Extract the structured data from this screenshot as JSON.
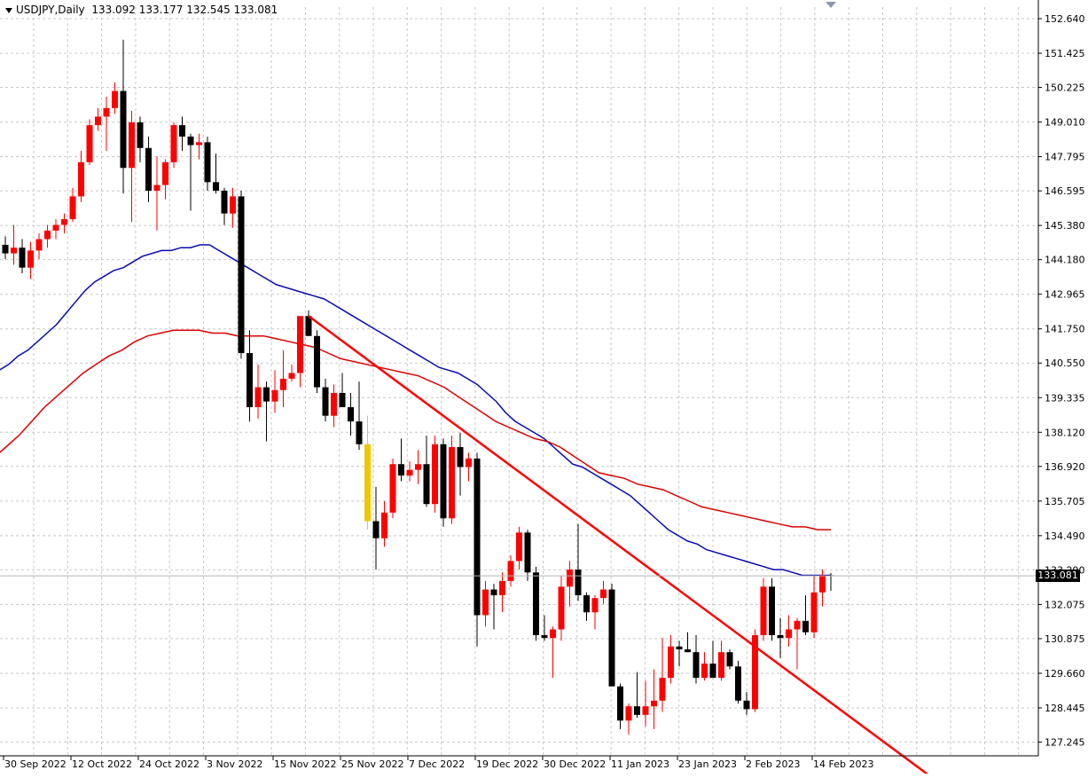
{
  "header": {
    "symbol": "USDJPY,Daily",
    "ohlc": "133.092 133.177 132.545 133.081"
  },
  "current_price_label": "133.081",
  "chart_data": {
    "type": "candlestick",
    "symbol": "USDJPY",
    "timeframe": "Daily",
    "ylim": [
      126.6,
      153.1
    ],
    "y_ticks": [
      "152.640",
      "151.425",
      "150.225",
      "149.010",
      "147.795",
      "146.595",
      "145.380",
      "144.180",
      "142.965",
      "141.750",
      "140.550",
      "139.335",
      "138.120",
      "136.920",
      "135.705",
      "134.490",
      "133.290",
      "132.075",
      "130.875",
      "129.660",
      "128.445",
      "127.245"
    ],
    "x_tick_labels": [
      "30 Sep 2022",
      "12 Oct 2022",
      "24 Oct 2022",
      "3 Nov 2022",
      "15 Nov 2022",
      "25 Nov 2022",
      "7 Dec 2022",
      "19 Dec 2022",
      "30 Dec 2022",
      "11 Jan 2023",
      "23 Jan 2023",
      "2 Feb 2023",
      "14 Feb 2023"
    ],
    "x_tick_index": [
      0,
      8,
      16,
      24,
      32,
      40,
      48,
      56,
      64,
      72,
      80,
      88,
      96
    ],
    "current_price": 133.081,
    "candles": [
      [
        144.7,
        145.0,
        144.2,
        144.4
      ],
      [
        144.4,
        145.4,
        144.0,
        144.6
      ],
      [
        144.6,
        144.9,
        143.7,
        143.9
      ],
      [
        143.9,
        144.8,
        143.5,
        144.5
      ],
      [
        144.5,
        145.1,
        144.2,
        144.9
      ],
      [
        144.9,
        145.4,
        144.6,
        145.2
      ],
      [
        145.2,
        145.6,
        144.9,
        145.4
      ],
      [
        145.4,
        145.8,
        145.1,
        145.6
      ],
      [
        145.6,
        146.7,
        145.5,
        146.4
      ],
      [
        146.4,
        148.0,
        146.2,
        147.6
      ],
      [
        147.6,
        149.1,
        147.5,
        148.9
      ],
      [
        148.9,
        149.5,
        148.7,
        149.2
      ],
      [
        149.2,
        149.9,
        148.0,
        149.5
      ],
      [
        149.5,
        150.4,
        149.3,
        150.1
      ],
      [
        150.1,
        151.9,
        146.5,
        147.4
      ],
      [
        147.4,
        149.4,
        145.5,
        149.0
      ],
      [
        149.0,
        149.2,
        147.6,
        148.1
      ],
      [
        148.1,
        148.5,
        146.2,
        146.6
      ],
      [
        146.6,
        147.8,
        145.2,
        146.8
      ],
      [
        146.8,
        147.7,
        146.3,
        147.6
      ],
      [
        147.6,
        149.0,
        147.4,
        148.9
      ],
      [
        148.9,
        149.2,
        148.0,
        148.5
      ],
      [
        148.5,
        148.6,
        145.9,
        148.2
      ],
      [
        148.2,
        148.6,
        147.7,
        148.3
      ],
      [
        148.3,
        148.5,
        146.6,
        146.9
      ],
      [
        146.9,
        147.9,
        146.5,
        146.6
      ],
      [
        146.6,
        146.7,
        145.4,
        145.8
      ],
      [
        145.8,
        146.7,
        145.3,
        146.4
      ],
      [
        146.4,
        146.6,
        140.7,
        140.9
      ],
      [
        140.9,
        141.7,
        138.5,
        139.0
      ],
      [
        139.0,
        140.5,
        138.6,
        139.7
      ],
      [
        139.7,
        139.9,
        137.8,
        139.2
      ],
      [
        139.2,
        140.3,
        138.8,
        139.6
      ],
      [
        139.6,
        141.0,
        139.0,
        140.0
      ],
      [
        140.0,
        140.5,
        139.9,
        140.2
      ],
      [
        140.2,
        142.2,
        139.7,
        142.2
      ],
      [
        142.2,
        142.4,
        141.5,
        141.5
      ],
      [
        141.5,
        141.7,
        139.5,
        139.7
      ],
      [
        139.7,
        140.0,
        138.5,
        138.7
      ],
      [
        138.7,
        139.8,
        138.3,
        139.5
      ],
      [
        139.5,
        140.2,
        139.0,
        139.0
      ],
      [
        139.0,
        139.5,
        138.0,
        138.5
      ],
      [
        138.5,
        139.9,
        137.5,
        137.7
      ],
      [
        137.7,
        138.7,
        134.7,
        135.0
      ],
      [
        135.0,
        136.2,
        133.3,
        134.4
      ],
      [
        134.4,
        135.7,
        134.1,
        135.3
      ],
      [
        135.3,
        137.2,
        135.1,
        137.0
      ],
      [
        137.0,
        137.9,
        136.4,
        136.6
      ],
      [
        136.6,
        137.1,
        136.4,
        136.8
      ],
      [
        136.8,
        137.5,
        136.3,
        137.0
      ],
      [
        137.0,
        138.0,
        135.5,
        135.6
      ],
      [
        135.6,
        138.0,
        135.3,
        137.7
      ],
      [
        137.7,
        137.9,
        134.8,
        135.1
      ],
      [
        135.1,
        138.0,
        134.9,
        137.6
      ],
      [
        137.6,
        138.1,
        135.9,
        136.9
      ],
      [
        136.9,
        137.4,
        136.4,
        137.2
      ],
      [
        137.2,
        137.4,
        130.6,
        131.7
      ],
      [
        131.7,
        132.9,
        131.3,
        132.6
      ],
      [
        132.6,
        132.8,
        131.2,
        132.4
      ],
      [
        132.4,
        133.2,
        131.8,
        132.9
      ],
      [
        132.9,
        133.8,
        132.7,
        133.6
      ],
      [
        133.6,
        134.8,
        133.3,
        134.6
      ],
      [
        134.6,
        134.7,
        132.9,
        133.2
      ],
      [
        133.2,
        133.4,
        130.8,
        131.0
      ],
      [
        131.0,
        131.7,
        130.8,
        130.9
      ],
      [
        130.9,
        131.3,
        129.5,
        131.2
      ],
      [
        131.2,
        133.1,
        130.8,
        132.7
      ],
      [
        132.7,
        133.6,
        132.0,
        133.3
      ],
      [
        133.3,
        134.9,
        132.2,
        132.4
      ],
      [
        132.4,
        132.5,
        131.5,
        131.8
      ],
      [
        131.8,
        132.4,
        131.2,
        132.3
      ],
      [
        132.3,
        132.9,
        132.1,
        132.6
      ],
      [
        132.6,
        132.8,
        129.4,
        129.2
      ],
      [
        129.2,
        129.3,
        127.7,
        128.0
      ],
      [
        128.0,
        128.6,
        127.5,
        128.5
      ],
      [
        128.5,
        129.7,
        128.1,
        128.2
      ],
      [
        128.2,
        129.4,
        127.8,
        128.5
      ],
      [
        128.5,
        129.8,
        127.7,
        128.7
      ],
      [
        128.7,
        130.9,
        128.3,
        129.5
      ],
      [
        129.5,
        131.0,
        129.3,
        130.6
      ],
      [
        130.6,
        130.8,
        129.9,
        130.5
      ],
      [
        130.5,
        131.1,
        130.4,
        130.4
      ],
      [
        130.4,
        131.0,
        129.3,
        129.5
      ],
      [
        129.5,
        130.4,
        129.4,
        130.0
      ],
      [
        130.0,
        130.8,
        129.5,
        129.5
      ],
      [
        129.5,
        130.8,
        129.4,
        130.4
      ],
      [
        130.4,
        130.5,
        129.8,
        129.9
      ],
      [
        129.9,
        130.1,
        128.6,
        128.7
      ],
      [
        128.7,
        129.0,
        128.2,
        128.4
      ],
      [
        128.4,
        131.2,
        128.3,
        131.0
      ],
      [
        131.0,
        133.0,
        130.8,
        132.7
      ],
      [
        132.7,
        133.0,
        130.8,
        131.0
      ],
      [
        131.0,
        131.6,
        130.2,
        130.9
      ],
      [
        130.9,
        131.7,
        130.6,
        131.2
      ],
      [
        131.2,
        131.6,
        129.8,
        131.5
      ],
      [
        131.5,
        132.4,
        131.0,
        131.1
      ],
      [
        131.1,
        133.1,
        130.9,
        132.5
      ],
      [
        132.5,
        133.3,
        132.0,
        133.1
      ],
      [
        133.1,
        133.18,
        132.55,
        133.081
      ]
    ],
    "series": [
      {
        "name": "",
        "color": "#0a0ab4",
        "values": [
          139.7,
          140.0,
          140.3,
          140.5,
          140.8,
          141.0,
          141.3,
          141.6,
          141.9,
          142.3,
          142.7,
          143.1,
          143.4,
          143.6,
          143.8,
          143.9,
          144.1,
          144.3,
          144.4,
          144.5,
          144.5,
          144.6,
          144.6,
          144.7,
          144.7,
          144.5,
          144.3,
          144.1,
          143.9,
          143.7,
          143.5,
          143.3,
          143.2,
          143.1,
          143.0,
          142.9,
          142.8,
          142.6,
          142.4,
          142.2,
          142.0,
          141.8,
          141.6,
          141.4,
          141.2,
          141.0,
          140.8,
          140.6,
          140.4,
          140.3,
          140.2,
          140.0,
          139.8,
          139.5,
          139.2,
          138.8,
          138.5,
          138.3,
          138.1,
          137.9,
          137.6,
          137.3,
          137.0,
          136.9,
          136.7,
          136.5,
          136.3,
          136.1,
          135.9,
          135.6,
          135.3,
          135.0,
          134.7,
          134.5,
          134.3,
          134.2,
          134.0,
          133.9,
          133.8,
          133.7,
          133.6,
          133.5,
          133.4,
          133.3,
          133.3,
          133.2,
          133.1,
          133.1,
          133.1,
          133.1
        ]
      },
      {
        "name": "",
        "color": "#dc0000",
        "values": [
          136.9,
          137.2,
          137.6,
          138.0,
          138.5,
          139.0,
          139.4,
          139.8,
          140.2,
          140.5,
          140.8,
          141.0,
          141.3,
          141.5,
          141.6,
          141.7,
          141.7,
          141.7,
          141.6,
          141.6,
          141.5,
          141.5,
          141.5,
          141.4,
          141.3,
          141.2,
          141.1,
          140.9,
          140.7,
          140.6,
          140.5,
          140.4,
          140.3,
          140.2,
          140.1,
          139.9,
          139.7,
          139.4,
          139.1,
          138.8,
          138.5,
          138.3,
          138.1,
          137.9,
          137.8,
          137.6,
          137.3,
          137.0,
          136.7,
          136.6,
          136.5,
          136.3,
          136.2,
          136.1,
          135.9,
          135.7,
          135.5,
          135.4,
          135.3,
          135.2,
          135.1,
          135.0,
          134.9,
          134.8,
          134.8,
          134.7,
          134.7
        ]
      }
    ],
    "trendline": {
      "color": "#ff0000",
      "start": [
        36,
        142.2
      ],
      "end": [
        110,
        126.0
      ]
    },
    "highlighted_candle_index": 43,
    "grid": true
  }
}
